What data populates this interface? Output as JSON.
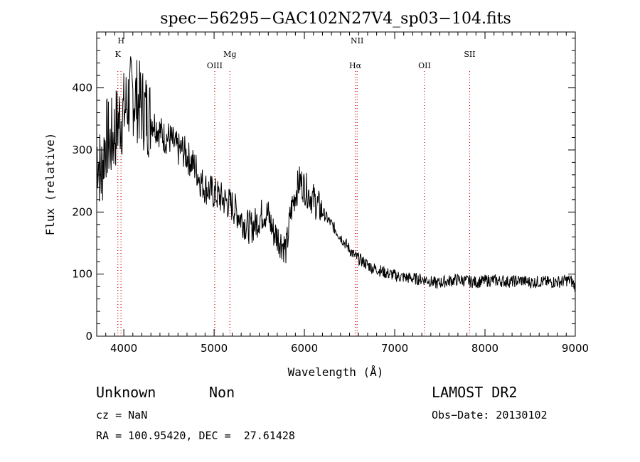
{
  "chart_data": {
    "type": "line",
    "title": "spec−56295−GAC102N27V4_sp03−104.fits",
    "xlabel": "Wavelength (Å)",
    "ylabel": "Flux (relative)",
    "xlim": [
      3700,
      9000
    ],
    "ylim": [
      0,
      490
    ],
    "xticks": [
      4000,
      5000,
      6000,
      7000,
      8000,
      9000
    ],
    "yticks": [
      0,
      100,
      200,
      300,
      400
    ],
    "grid": false,
    "legend": "none",
    "series": [
      {
        "x": [
          3700,
          3750,
          3800,
          3850,
          3900,
          3950,
          4000,
          4050,
          4100,
          4150,
          4200,
          4250,
          4300,
          4350,
          4400,
          4450,
          4500,
          4550,
          4600,
          4650,
          4700,
          4750,
          4800,
          4850,
          4900,
          4950,
          5000,
          5050,
          5100,
          5150,
          5200,
          5250,
          5300,
          5350,
          5400,
          5450,
          5500,
          5550,
          5600,
          5650,
          5700,
          5750,
          5800,
          5850,
          5900,
          5950,
          6000,
          6050,
          6100,
          6150,
          6200,
          6250,
          6300,
          6350,
          6400,
          6450,
          6500,
          6550,
          6600,
          6650,
          6700,
          6750,
          6800,
          6850,
          6900,
          6950,
          7000,
          7050,
          7100,
          7150,
          7200,
          7250,
          7300,
          7350,
          7400,
          7450,
          7500,
          7550,
          7600,
          7650,
          7700,
          7750,
          7800,
          7850,
          7900,
          7950,
          8000,
          8050,
          8100,
          8150,
          8200,
          8250,
          8300,
          8350,
          8400,
          8450,
          8500,
          8550,
          8600,
          8650,
          8700,
          8750,
          8800,
          8850,
          8900,
          8950,
          9000
        ],
        "y": [
          300,
          260,
          320,
          310,
          330,
          350,
          360,
          380,
          390,
          380,
          370,
          360,
          350,
          340,
          330,
          320,
          320,
          310,
          300,
          300,
          290,
          280,
          270,
          250,
          240,
          235,
          230,
          225,
          220,
          215,
          210,
          200,
          190,
          180,
          175,
          180,
          190,
          200,
          195,
          170,
          160,
          150,
          140,
          200,
          230,
          250,
          240,
          230,
          220,
          210,
          200,
          190,
          180,
          170,
          160,
          150,
          140,
          130,
          125,
          120,
          115,
          110,
          108,
          105,
          102,
          100,
          98,
          96,
          95,
          94,
          93,
          92,
          92,
          91,
          88,
          85,
          86,
          88,
          89,
          90,
          91,
          90,
          89,
          88,
          87,
          88,
          89,
          90,
          90,
          89,
          89,
          88,
          88,
          89,
          90,
          88,
          87,
          87,
          88,
          88,
          87,
          87,
          88,
          88,
          90,
          90,
          80
        ]
      }
    ],
    "spectral_lines": [
      {
        "name": "K",
        "wavelength": 3934,
        "row": 3
      },
      {
        "name": "H",
        "wavelength": 3969,
        "row": 1
      },
      {
        "name": "OIII",
        "wavelength": 5007,
        "row": 4
      },
      {
        "name": "Mg",
        "wavelength": 5175,
        "row": 3
      },
      {
        "name": "NII",
        "wavelength": 6584,
        "row": 2
      },
      {
        "name": "Hα",
        "wavelength": 6563,
        "row": 4
      },
      {
        "name": "OII",
        "wavelength": 7330,
        "row": 4
      },
      {
        "name": "SII",
        "wavelength": 7830,
        "row": 3
      }
    ]
  },
  "footer": {
    "object_class": "Unknown",
    "subclass": "Non",
    "survey": "LAMOST DR2",
    "redshift": "cz = NaN",
    "obs_date": "Obs−Date: 20130102",
    "coordinates": "RA = 100.95420, DEC =  27.61428"
  }
}
